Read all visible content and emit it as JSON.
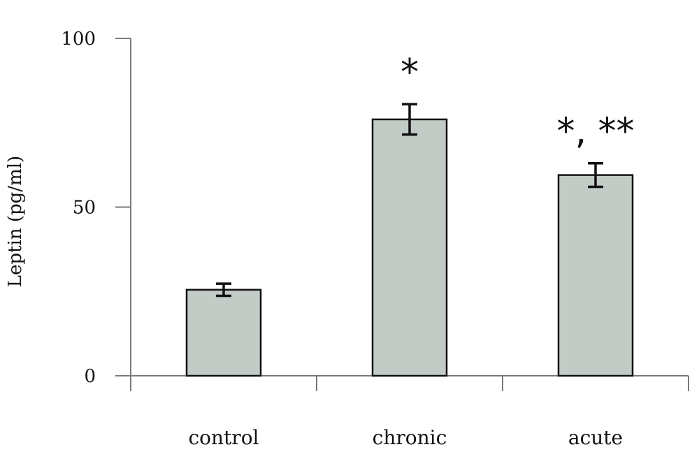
{
  "chart_data": {
    "type": "bar",
    "categories": [
      "control",
      "chronic",
      "acute"
    ],
    "values": [
      25.5,
      76,
      59.5
    ],
    "errors": [
      1.8,
      4.5,
      3.5
    ],
    "annotations": [
      "",
      "*",
      "*, **"
    ],
    "ylabel": "Leptin (pg/ml)",
    "xlabel": "",
    "ylim": [
      0,
      100
    ],
    "yticks": [
      0,
      50,
      100
    ],
    "grid": false,
    "bar_color": "#c3cbc6"
  }
}
